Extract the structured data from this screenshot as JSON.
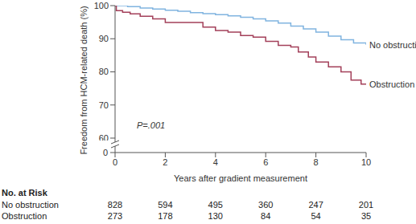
{
  "chart_data": {
    "type": "line",
    "line_style": "step",
    "ylabel": "Freedom from HCM-related death (%)",
    "xlabel": "Years after gradient measurement",
    "xlim": [
      0,
      10
    ],
    "xticks": [
      0,
      2,
      4,
      6,
      8,
      10
    ],
    "ylim": [
      60,
      100
    ],
    "yticks": [
      60,
      70,
      80,
      90,
      100
    ],
    "ybreak_tick": 0,
    "grid": false,
    "annotations": [
      {
        "text": "P=.001"
      }
    ],
    "series": [
      {
        "name": "No obstruction",
        "color": "#80b4e0",
        "x": [
          0,
          0.5,
          1,
          1.5,
          2,
          2.5,
          3,
          3.5,
          4,
          4.5,
          5,
          5.5,
          6,
          6.5,
          7,
          7.5,
          8,
          8.5,
          9,
          9.5,
          10
        ],
        "values": [
          100,
          99.7,
          99.3,
          99,
          98.6,
          98.3,
          97.9,
          97.6,
          97.3,
          96.9,
          96.5,
          96,
          95.4,
          94.7,
          93.8,
          93,
          92,
          90.8,
          89.7,
          88.7,
          88.2
        ]
      },
      {
        "name": "Obstruction",
        "color": "#a3405a",
        "x": [
          0,
          0.05,
          0.3,
          0.6,
          1,
          1.5,
          2,
          3,
          3.5,
          4,
          4.5,
          5,
          5.5,
          6,
          6.5,
          7,
          7.3,
          7.7,
          8,
          8.5,
          9,
          9.4,
          9.8,
          10
        ],
        "values": [
          100,
          98.5,
          98,
          97.5,
          96.8,
          96,
          94.9,
          94.9,
          93.5,
          92.5,
          92,
          91,
          90.5,
          89.2,
          88,
          87.5,
          86,
          84.5,
          83,
          81.5,
          80,
          77.5,
          76.3,
          76.2
        ]
      }
    ],
    "at_risk": {
      "header": "No. at Risk",
      "x": [
        0,
        2,
        4,
        6,
        8,
        10
      ],
      "rows": [
        {
          "name": "No obstruction",
          "values": [
            828,
            594,
            495,
            360,
            247,
            201
          ]
        },
        {
          "name": "Obstruction",
          "values": [
            273,
            178,
            130,
            84,
            54,
            35
          ]
        }
      ]
    }
  }
}
